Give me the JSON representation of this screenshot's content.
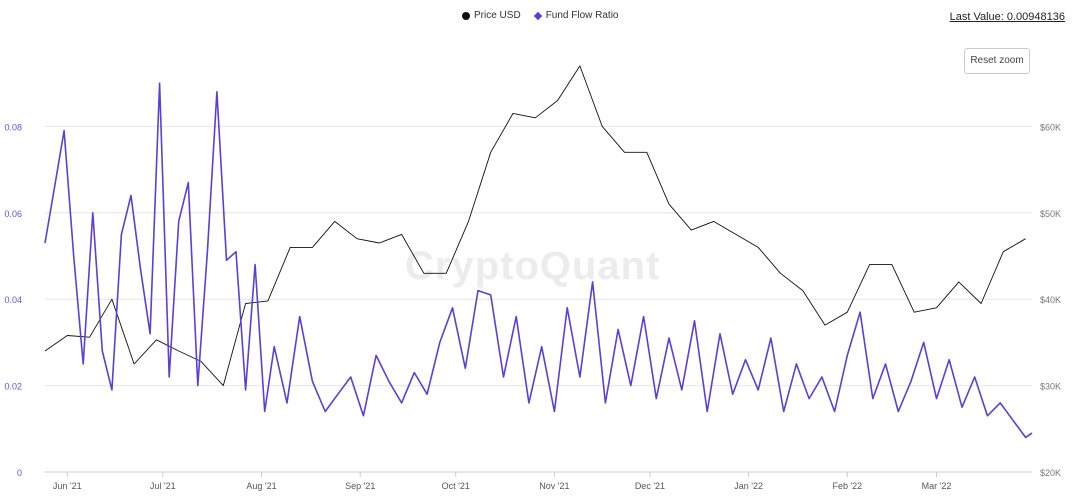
{
  "legend": {
    "price_label": "Price USD",
    "ratio_label": "Fund Flow Ratio"
  },
  "last_value": "Last Value: 0.00948136",
  "reset_zoom_label": "Reset zoom",
  "watermark": "CryptoQuant",
  "colors": {
    "price": "#111111",
    "ratio": "#5b3fd6",
    "grid": "#e6e6e6",
    "left_axis": "#6a4fdc",
    "right_axis": "#777777"
  },
  "chart_data": {
    "type": "line",
    "x_ticks": [
      "Jun '21",
      "Jul '21",
      "Aug '21",
      "Sep '21",
      "Oct '21",
      "Nov '21",
      "Dec '21",
      "Jan '22",
      "Feb '22",
      "Mar '22"
    ],
    "y_left_ticks": [
      "0",
      "0.02",
      "0.04",
      "0.06",
      "0.08"
    ],
    "y_right_ticks": [
      "$20K",
      "$30K",
      "$40K",
      "$50K",
      "$60K"
    ],
    "ylim_left": [
      0,
      0.1
    ],
    "ylim_right": [
      20000,
      70000
    ],
    "xlim": [
      "2021-05-25",
      "2022-03-31"
    ],
    "grid": true,
    "legend_position": "top-center",
    "series": [
      {
        "name": "Price USD",
        "axis": "right",
        "x": [
          "2021-05-25",
          "2021-06-01",
          "2021-06-08",
          "2021-06-15",
          "2021-06-22",
          "2021-06-29",
          "2021-07-06",
          "2021-07-13",
          "2021-07-20",
          "2021-07-27",
          "2021-08-03",
          "2021-08-10",
          "2021-08-17",
          "2021-08-24",
          "2021-08-31",
          "2021-09-07",
          "2021-09-14",
          "2021-09-21",
          "2021-09-28",
          "2021-10-05",
          "2021-10-12",
          "2021-10-19",
          "2021-10-26",
          "2021-11-02",
          "2021-11-09",
          "2021-11-16",
          "2021-11-23",
          "2021-11-30",
          "2021-12-07",
          "2021-12-14",
          "2021-12-21",
          "2021-12-28",
          "2022-01-04",
          "2022-01-11",
          "2022-01-18",
          "2022-01-25",
          "2022-02-01",
          "2022-02-08",
          "2022-02-15",
          "2022-02-22",
          "2022-03-01",
          "2022-03-08",
          "2022-03-15",
          "2022-03-22",
          "2022-03-29"
        ],
        "values": [
          34000,
          35800,
          35600,
          40000,
          32500,
          35300,
          34000,
          32800,
          30000,
          39500,
          39800,
          46000,
          46000,
          49000,
          47000,
          46500,
          47500,
          43000,
          43000,
          49000,
          57000,
          61500,
          61000,
          63000,
          67000,
          60000,
          57000,
          57000,
          51000,
          48000,
          49000,
          47500,
          46000,
          43000,
          41000,
          37000,
          38500,
          44000,
          44000,
          38500,
          39000,
          42000,
          39500,
          45500,
          47000
        ]
      },
      {
        "name": "Fund Flow Ratio",
        "axis": "left",
        "x": [
          "2021-05-25",
          "2021-05-28",
          "2021-05-31",
          "2021-06-03",
          "2021-06-06",
          "2021-06-09",
          "2021-06-12",
          "2021-06-15",
          "2021-06-18",
          "2021-06-21",
          "2021-06-24",
          "2021-06-27",
          "2021-06-30",
          "2021-07-03",
          "2021-07-06",
          "2021-07-09",
          "2021-07-12",
          "2021-07-15",
          "2021-07-18",
          "2021-07-21",
          "2021-07-24",
          "2021-07-27",
          "2021-07-30",
          "2021-08-02",
          "2021-08-05",
          "2021-08-09",
          "2021-08-13",
          "2021-08-17",
          "2021-08-21",
          "2021-08-25",
          "2021-08-29",
          "2021-09-02",
          "2021-09-06",
          "2021-09-10",
          "2021-09-14",
          "2021-09-18",
          "2021-09-22",
          "2021-09-26",
          "2021-09-30",
          "2021-10-04",
          "2021-10-08",
          "2021-10-12",
          "2021-10-16",
          "2021-10-20",
          "2021-10-24",
          "2021-10-28",
          "2021-11-01",
          "2021-11-05",
          "2021-11-09",
          "2021-11-13",
          "2021-11-17",
          "2021-11-21",
          "2021-11-25",
          "2021-11-29",
          "2021-12-03",
          "2021-12-07",
          "2021-12-11",
          "2021-12-15",
          "2021-12-19",
          "2021-12-23",
          "2021-12-27",
          "2021-12-31",
          "2022-01-04",
          "2022-01-08",
          "2022-01-12",
          "2022-01-16",
          "2022-01-20",
          "2022-01-24",
          "2022-01-28",
          "2022-02-01",
          "2022-02-05",
          "2022-02-09",
          "2022-02-13",
          "2022-02-17",
          "2022-02-21",
          "2022-02-25",
          "2022-03-01",
          "2022-03-05",
          "2022-03-09",
          "2022-03-13",
          "2022-03-17",
          "2022-03-21",
          "2022-03-25",
          "2022-03-29",
          "2022-03-31"
        ],
        "values": [
          0.053,
          0.066,
          0.079,
          0.05,
          0.025,
          0.06,
          0.028,
          0.019,
          0.055,
          0.064,
          0.047,
          0.032,
          0.09,
          0.022,
          0.058,
          0.067,
          0.02,
          0.051,
          0.088,
          0.049,
          0.051,
          0.019,
          0.048,
          0.014,
          0.029,
          0.016,
          0.036,
          0.021,
          0.014,
          0.018,
          0.022,
          0.013,
          0.027,
          0.021,
          0.016,
          0.023,
          0.018,
          0.03,
          0.038,
          0.024,
          0.042,
          0.041,
          0.022,
          0.036,
          0.016,
          0.029,
          0.014,
          0.038,
          0.022,
          0.044,
          0.016,
          0.033,
          0.02,
          0.036,
          0.017,
          0.031,
          0.019,
          0.035,
          0.014,
          0.032,
          0.018,
          0.026,
          0.019,
          0.031,
          0.014,
          0.025,
          0.017,
          0.022,
          0.014,
          0.027,
          0.037,
          0.017,
          0.025,
          0.014,
          0.021,
          0.03,
          0.017,
          0.026,
          0.015,
          0.022,
          0.013,
          0.016,
          0.012,
          0.008,
          0.009
        ]
      }
    ]
  }
}
